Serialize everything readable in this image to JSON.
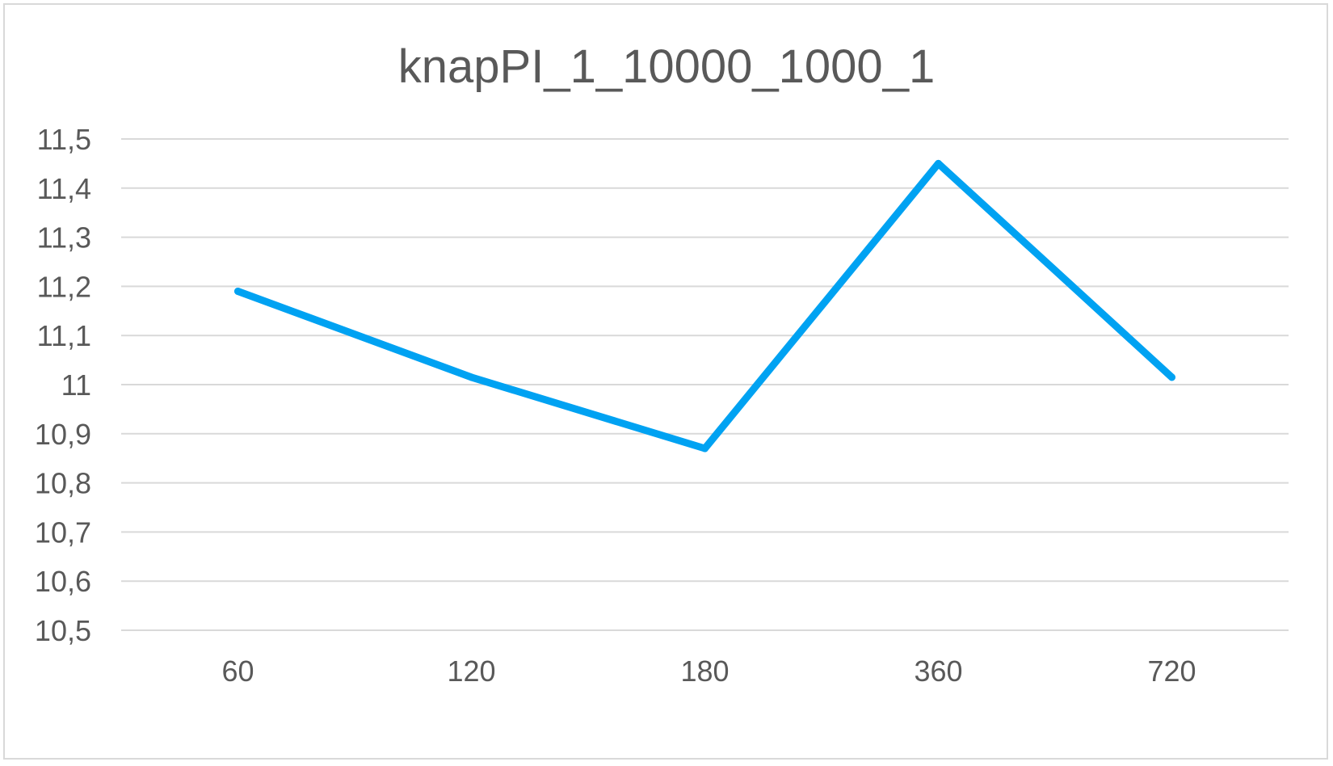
{
  "chart_data": {
    "type": "line",
    "title": "knapPI_1_10000_1000_1",
    "xlabel": "",
    "ylabel": "",
    "categories": [
      "60",
      "120",
      "180",
      "360",
      "720"
    ],
    "series": [
      {
        "values": [
          11.19,
          11.015,
          10.87,
          11.45,
          11.015
        ]
      }
    ],
    "ylim": [
      10.5,
      11.5
    ],
    "yticks": [
      "11,5",
      "11,4",
      "11,3",
      "11,2",
      "11,1",
      "11",
      "10,9",
      "10,8",
      "10,7",
      "10,6",
      "10,5"
    ],
    "grid": true,
    "legend": "none",
    "colors": {
      "line": "#00a2f2",
      "grid": "#d9d9d9",
      "text": "#595959",
      "border": "#d9d9d9"
    }
  }
}
